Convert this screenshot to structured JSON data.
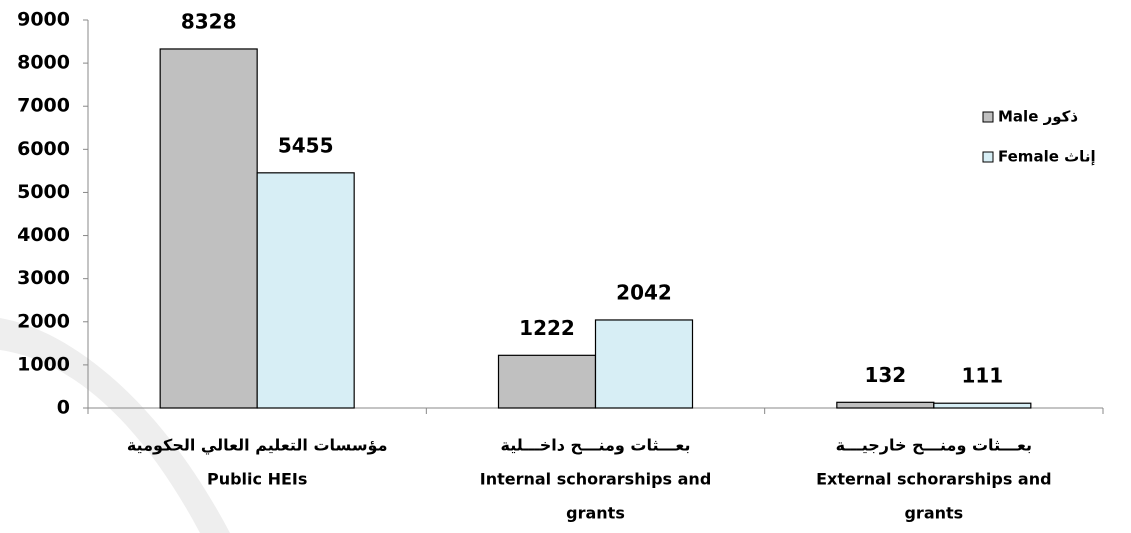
{
  "chart_data": {
    "type": "bar",
    "categories": [
      [
        "مؤسسات التعليم العالي الحكومية",
        "Public HEIs"
      ],
      [
        "بعـــثات ومنـــح داخـــلية",
        "Internal schorarships and",
        "grants"
      ],
      [
        "بعـــثات ومنـــح خارجيـــة",
        "External schorarships and",
        "grants"
      ]
    ],
    "series": [
      {
        "name": "Male ذكور",
        "color": "#c0c0c0",
        "values": [
          8328,
          1222,
          132
        ]
      },
      {
        "name": "Female إناث",
        "color": "#d7eef5",
        "values": [
          5455,
          2042,
          111
        ]
      }
    ],
    "ylim": [
      0,
      9000
    ],
    "yticks": [
      0,
      1000,
      2000,
      3000,
      4000,
      5000,
      6000,
      7000,
      8000,
      9000
    ],
    "legend": "right"
  }
}
